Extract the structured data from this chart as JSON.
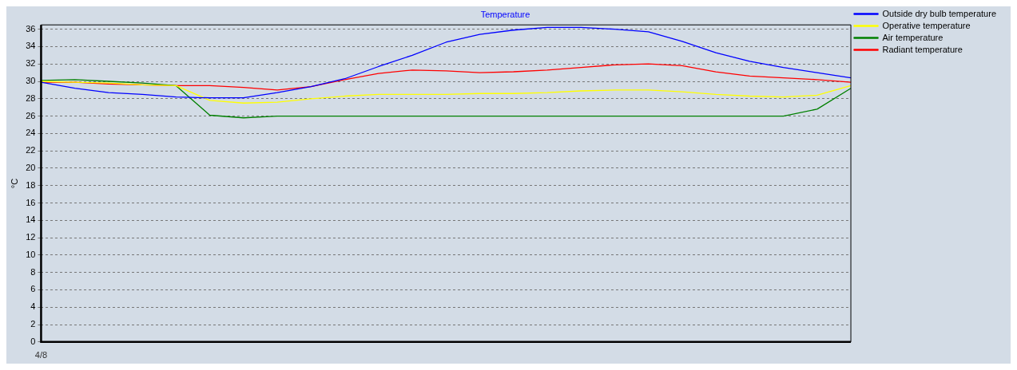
{
  "chart_data": {
    "type": "line",
    "title": "Temperature",
    "ylabel": "°C",
    "categories": [
      "4/8",
      null,
      null,
      null,
      null,
      null,
      null,
      null,
      null,
      null,
      null,
      null,
      null,
      null,
      null,
      null,
      null,
      null,
      null,
      null,
      null,
      null,
      null,
      null,
      null
    ],
    "series": [
      {
        "name": "Outside dry bulb temperature",
        "color": "#0000ff",
        "values": [
          29.9,
          29.2,
          28.7,
          28.5,
          28.2,
          28.1,
          28.1,
          28.7,
          29.4,
          30.3,
          31.7,
          33.0,
          34.5,
          35.4,
          35.9,
          36.2,
          36.2,
          36.0,
          35.7,
          34.6,
          33.3,
          32.3,
          31.6,
          31.0,
          30.4
        ]
      },
      {
        "name": "Operative temperature",
        "color": "#ffff00",
        "values": [
          30.0,
          29.9,
          29.8,
          29.6,
          29.5,
          27.8,
          27.5,
          27.6,
          28.0,
          28.3,
          28.5,
          28.5,
          28.5,
          28.6,
          28.6,
          28.7,
          28.9,
          29.0,
          29.0,
          28.8,
          28.5,
          28.3,
          28.2,
          28.4,
          29.5
        ]
      },
      {
        "name": "Air temperature",
        "color": "#008000",
        "values": [
          30.1,
          30.2,
          30.0,
          29.8,
          29.5,
          26.1,
          25.8,
          26.0,
          26.0,
          26.0,
          26.0,
          26.0,
          26.0,
          26.0,
          26.0,
          26.0,
          26.0,
          26.0,
          26.0,
          26.0,
          26.0,
          26.0,
          26.0,
          26.8,
          29.2
        ]
      },
      {
        "name": "Radiant temperature",
        "color": "#ff0000",
        "values": [
          29.9,
          29.9,
          29.7,
          29.6,
          29.5,
          29.5,
          29.3,
          29.0,
          29.4,
          30.2,
          30.9,
          31.3,
          31.2,
          31.0,
          31.1,
          31.3,
          31.6,
          31.9,
          32.0,
          31.8,
          31.1,
          30.6,
          30.4,
          30.2,
          29.9
        ]
      }
    ],
    "ylim": [
      0,
      36.5
    ],
    "yticks": [
      0,
      2,
      4,
      6,
      8,
      10,
      12,
      14,
      16,
      18,
      20,
      22,
      24,
      26,
      28,
      30,
      32,
      34,
      36
    ],
    "grid": "y",
    "legend": "top right",
    "marker": "none",
    "line_style": "solid"
  }
}
